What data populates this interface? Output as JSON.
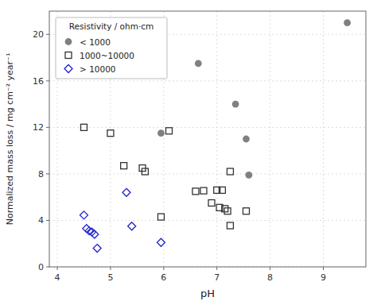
{
  "chart_data": {
    "type": "scatter",
    "xlabel": "pH",
    "ylabel": "Normalized mass loss / mg cm⁻² year⁻¹",
    "legend_title": "Resistivity / ohm·cm",
    "series": [
      {
        "name": "< 1000",
        "color": "#808080",
        "marker": "circle",
        "x": [
          6.65,
          7.35,
          7.55,
          7.6,
          9.45,
          5.95
        ],
        "values": [
          17.5,
          14.0,
          11.0,
          7.9,
          21.0,
          11.5
        ]
      },
      {
        "name": "1000~10000",
        "color": "#333333",
        "marker": "open-square",
        "x": [
          4.5,
          5.0,
          5.25,
          5.6,
          5.65,
          5.95,
          6.1,
          6.6,
          6.75,
          6.9,
          7.0,
          7.05,
          7.1,
          7.15,
          7.2,
          7.25,
          7.55,
          7.25
        ],
        "values": [
          12.0,
          11.5,
          8.7,
          8.5,
          8.2,
          4.3,
          11.7,
          6.5,
          6.55,
          5.5,
          6.6,
          5.1,
          6.6,
          5.0,
          4.8,
          8.2,
          4.8,
          3.55
        ]
      },
      {
        "name": "> 10000",
        "color": "#2222cc",
        "marker": "open-diamond",
        "x": [
          4.5,
          4.55,
          4.6,
          4.65,
          4.7,
          4.75,
          5.3,
          5.4,
          5.95
        ],
        "values": [
          4.45,
          3.3,
          3.1,
          3.0,
          2.8,
          1.6,
          6.4,
          3.5,
          2.1
        ]
      }
    ],
    "xlim": [
      3.85,
      9.8
    ],
    "ylim": [
      0,
      22
    ],
    "xticks": [
      4,
      5,
      6,
      7,
      8,
      9
    ],
    "yticks": [
      0,
      4,
      8,
      12,
      16,
      20
    ],
    "grid": true,
    "legend": "upper left"
  }
}
